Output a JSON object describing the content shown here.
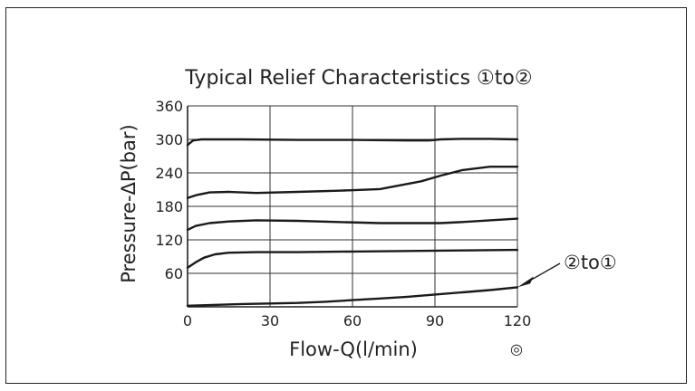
{
  "chart_data": {
    "type": "line",
    "title": "Typical Relief Characteristics ①to②",
    "xlabel": "Flow-Q(l/min)",
    "ylabel": "Pressure-ΔP(bar)",
    "xlim": [
      0,
      120
    ],
    "ylim": [
      0,
      360
    ],
    "xticks": [
      "0",
      "30",
      "60",
      "90",
      "120"
    ],
    "yticks": [
      "60",
      "120",
      "180",
      "240",
      "300",
      "360"
    ],
    "grid": true,
    "series": [
      {
        "x": [
          0,
          2,
          5,
          10,
          20,
          40,
          60,
          80,
          88,
          92,
          100,
          110,
          120
        ],
        "y": [
          290,
          298,
          300,
          300,
          300,
          299,
          299,
          298,
          298,
          300,
          301,
          301,
          300
        ]
      },
      {
        "x": [
          0,
          3,
          8,
          15,
          25,
          40,
          55,
          70,
          85,
          92,
          100,
          110,
          120
        ],
        "y": [
          195,
          200,
          205,
          206,
          204,
          206,
          208,
          211,
          225,
          235,
          245,
          251,
          251
        ]
      },
      {
        "x": [
          0,
          3,
          8,
          15,
          25,
          40,
          55,
          70,
          85,
          92,
          100,
          110,
          120
        ],
        "y": [
          138,
          145,
          150,
          153,
          155,
          154,
          152,
          150,
          150,
          150,
          152,
          155,
          158
        ]
      },
      {
        "x": [
          0,
          3,
          6,
          10,
          15,
          25,
          40,
          60,
          80,
          100,
          120
        ],
        "y": [
          70,
          80,
          88,
          94,
          97,
          98,
          98,
          99,
          100,
          101,
          102
        ]
      },
      {
        "x": [
          0,
          20,
          40,
          50,
          60,
          70,
          80,
          90,
          100,
          110,
          120
        ],
        "y": [
          2,
          5,
          7,
          9,
          12,
          15,
          18,
          22,
          26,
          30,
          35
        ]
      }
    ],
    "annotation": {
      "text": "②to①",
      "x": 120,
      "y": 35
    }
  },
  "footnote_symbol": "◎"
}
